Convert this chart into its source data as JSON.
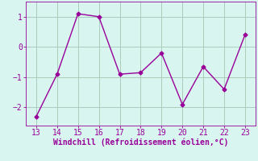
{
  "x": [
    13,
    14,
    15,
    16,
    17,
    18,
    19,
    20,
    21,
    22,
    23
  ],
  "y": [
    -2.3,
    -0.9,
    1.1,
    1.0,
    -0.9,
    -0.85,
    -0.2,
    -1.9,
    -0.65,
    -1.4,
    0.4
  ],
  "line_color": "#990099",
  "marker": "D",
  "marker_size": 2.5,
  "line_width": 1.0,
  "xlabel": "Windchill (Refroidissement éolien,°C)",
  "xlabel_color": "#990099",
  "xlabel_fontsize": 7.0,
  "background_color": "#d8f5f0",
  "grid_color": "#aaccbb",
  "tick_color": "#990099",
  "tick_fontsize": 7.0,
  "ylim": [
    -2.6,
    1.5
  ],
  "xlim": [
    12.5,
    23.5
  ],
  "yticks": [
    -2,
    -1,
    0,
    1
  ],
  "xticks": [
    13,
    14,
    15,
    16,
    17,
    18,
    19,
    20,
    21,
    22,
    23
  ]
}
